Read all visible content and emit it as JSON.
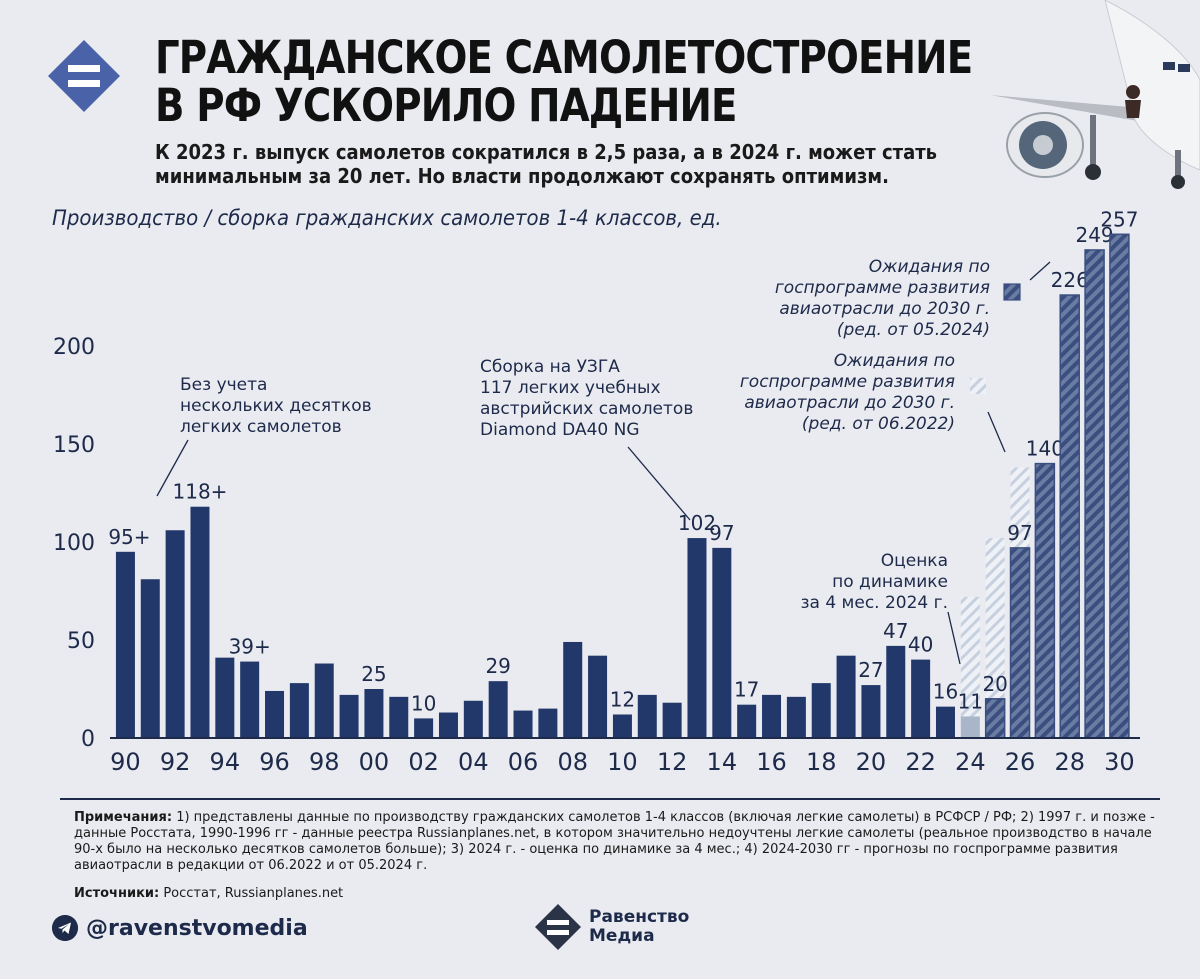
{
  "header": {
    "title": "ГРАЖДАНСКОЕ САМОЛЕТОСТРОЕНИЕ\nВ РФ УСКОРИЛО ПАДЕНИЕ",
    "subtitle": "К 2023 г. выпуск самолетов сократился в 2,5 раза, а в 2024 г. может стать минимальным за 20 лет. Но власти продолжают сохранять оптимизм."
  },
  "colors": {
    "actual": "#22386b",
    "estimate": "#a9b6c9",
    "forecast_hatch": "#3a4f80",
    "forecast_light": "#c7d0df",
    "background": "#e9ebf0"
  },
  "chart_data": {
    "type": "bar",
    "title": "Производство / сборка гражданских самолетов 1-4 классов, ед.",
    "x": [
      1990,
      1991,
      1992,
      1993,
      1994,
      1995,
      1996,
      1997,
      1998,
      1999,
      2000,
      2001,
      2002,
      2003,
      2004,
      2005,
      2006,
      2007,
      2008,
      2009,
      2010,
      2011,
      2012,
      2013,
      2014,
      2015,
      2016,
      2017,
      2018,
      2019,
      2020,
      2021,
      2022,
      2023,
      2024
    ],
    "values": [
      95,
      81,
      106,
      118,
      41,
      39,
      24,
      28,
      38,
      22,
      25,
      21,
      10,
      13,
      19,
      29,
      14,
      15,
      49,
      42,
      12,
      22,
      18,
      102,
      97,
      17,
      22,
      21,
      28,
      42,
      27,
      47,
      40,
      16,
      11
    ],
    "value_labels": {
      "1990": "95+",
      "1993": "118+",
      "1995": "39+",
      "2000": "25",
      "2002": "10",
      "2005": "29",
      "2010": "12",
      "2013": "102",
      "2014": "97",
      "2015": "17",
      "2020": "27",
      "2021": "47",
      "2022": "40",
      "2023": "16",
      "2024": "11"
    },
    "estimate_year": 2024,
    "forecast_2022": {
      "x": [
        2024,
        2025,
        2026,
        2027
      ],
      "values": [
        72,
        102,
        138,
        140
      ]
    },
    "forecast_2024": {
      "x": [
        2025,
        2026,
        2027,
        2028,
        2029,
        2030
      ],
      "values": [
        20,
        97,
        140,
        226,
        249,
        257
      ],
      "labels": [
        "20",
        "97",
        "140",
        "226",
        "249",
        "257"
      ]
    },
    "ylim": [
      0,
      260
    ],
    "yticks": [
      0,
      50,
      100,
      150,
      200
    ],
    "xticks": [
      "90",
      "92",
      "94",
      "96",
      "98",
      "00",
      "02",
      "04",
      "06",
      "08",
      "10",
      "12",
      "14",
      "16",
      "18",
      "20",
      "22",
      "24",
      "26",
      "28",
      "30"
    ],
    "annotations": [
      "Без учета\nнескольких десятков\nлегких самолетов",
      "Сборка на УЗГА\n117 легких учебных\nавстрийских самолетов\nDiamond DA40 NG",
      "Оценка\nпо динамике\nза 4 мес. 2024 г.",
      "Ожидания по\nгоспрограмме развития\nавиаотрасли до 2030 г.\n(ред. от 05.2024)",
      "Ожидания по\nгоспрограмме развития\nавиаотрасли до 2030 г.\n(ред. от 06.2022)"
    ]
  },
  "notes": {
    "label": "Примечания:",
    "text": " 1) представлены данные по производству гражданских самолетов 1-4 классов (включая легкие самолеты) в РСФСР / РФ; 2) 1997 г. и позже - данные Росстата, 1990-1996 гг - данные реестра Russianplanes.net, в котором значительно недоучтены легкие самолеты (реальное производство в начале 90-х было на несколько десятков самолетов больше); 3) 2024 г. - оценка по динамике за 4 мес.; 4) 2024-2030 гг - прогнозы по госпрограмме развития авиаотрасли в редакции от 06.2022 и от 05.2024 г.",
    "sources_label": "Источники:",
    "sources_text": " Росстат, Russianplanes.net"
  },
  "footer": {
    "handle": "@ravenstvomedia",
    "brand": "Равенство\nМедиа",
    "telegram_icon": "telegram-icon"
  }
}
